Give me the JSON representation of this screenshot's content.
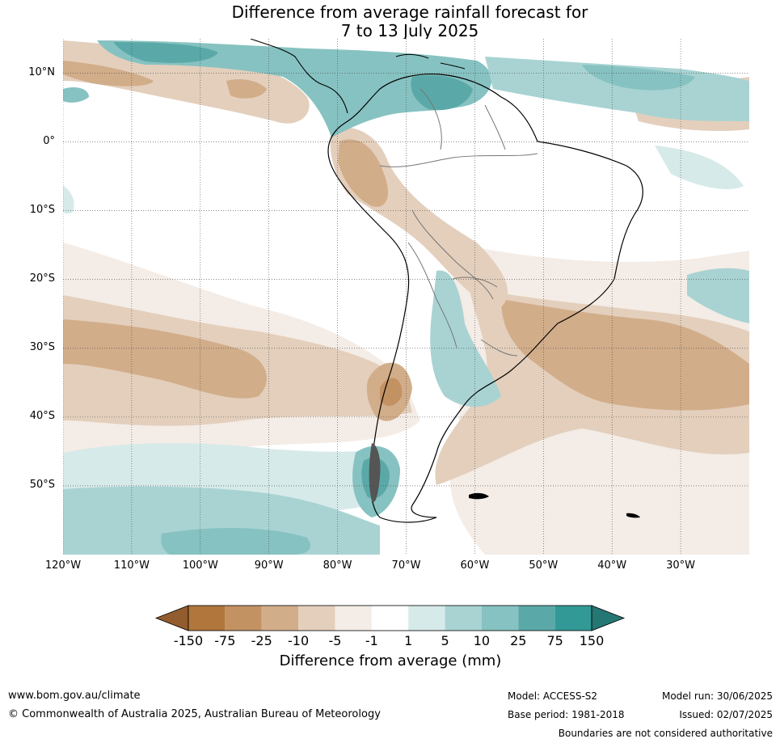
{
  "title_line1": "Difference from average rainfall forecast for",
  "title_line2": "7 to 13 July 2025",
  "map": {
    "extent": {
      "lon_min": -120,
      "lon_max": -20,
      "lat_min": -60,
      "lat_max": 15
    },
    "lat_labels": [
      "10°N",
      "0°",
      "10°S",
      "20°S",
      "30°S",
      "40°S",
      "50°S"
    ],
    "lat_values": [
      10,
      0,
      -10,
      -20,
      -30,
      -40,
      -50
    ],
    "lon_labels": [
      "120°W",
      "110°W",
      "100°W",
      "90°W",
      "80°W",
      "70°W",
      "60°W",
      "50°W",
      "40°W",
      "30°W"
    ],
    "lon_values": [
      -120,
      -110,
      -100,
      -90,
      -80,
      -70,
      -60,
      -50,
      -40,
      -30
    ],
    "grid": true
  },
  "legend": {
    "title": "Difference from average (mm)",
    "tick_labels": [
      "-150",
      "-75",
      "-25",
      "-10",
      "-5",
      "-1",
      "1",
      "5",
      "10",
      "25",
      "75",
      "150"
    ],
    "colors": [
      "#925c2e",
      "#b0763c",
      "#c39263",
      "#d2ad8a",
      "#e3cfbc",
      "#f4ece6",
      "#ffffff",
      "#d6eae9",
      "#a9d3d3",
      "#86c2c1",
      "#5aa9a8",
      "#329996",
      "#257773"
    ]
  },
  "footer": {
    "website": "www.bom.gov.au/climate",
    "copyright": "© Commonwealth of Australia 2025, Australian Bureau of Meteorology",
    "model": "Model: ACCESS-S2",
    "base_period": "Base period: 1981-2018",
    "model_run": "Model run: 30/06/2025",
    "issued": "Issued: 02/07/2025",
    "disclaimer": "Boundaries are not considered authoritative"
  }
}
